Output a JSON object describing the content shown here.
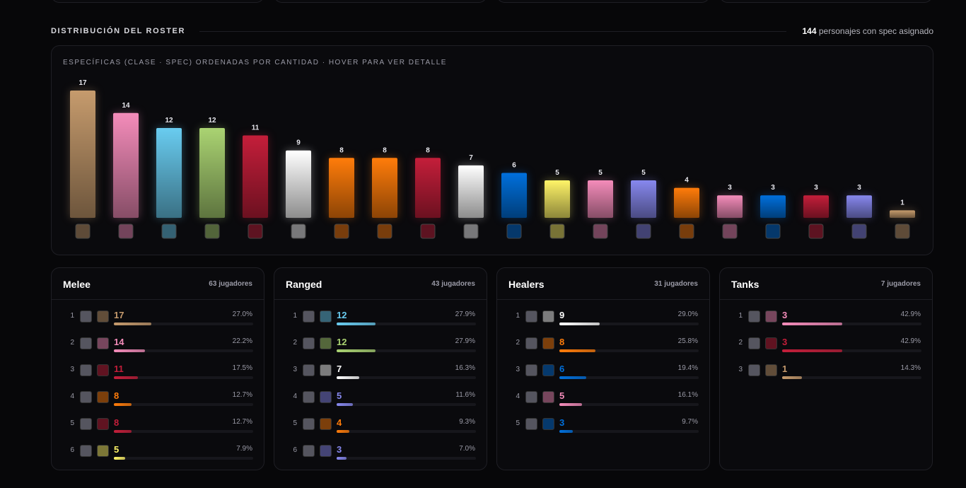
{
  "header": {
    "title": "DISTRIBUCIÓN DEL ROSTER",
    "summary_count": 144,
    "summary_text": "personajes con spec asignado"
  },
  "chart_data": {
    "type": "bar",
    "subtitle": "ESPECÍFICAS (CLASE · SPEC) ORDENADAS POR CANTIDAD · HOVER PARA VER DETALLE",
    "values": [
      17,
      14,
      12,
      12,
      11,
      9,
      8,
      8,
      8,
      7,
      6,
      5,
      5,
      5,
      4,
      3,
      3,
      3,
      3,
      1
    ],
    "colors": [
      "#C69B6D",
      "#F48CBA",
      "#69CCF0",
      "#AAD372",
      "#C41E3A",
      "#FFFFFF",
      "#FF7C0A",
      "#FF7C0A",
      "#C41E3A",
      "#FFFFFF",
      "#0070DD",
      "#FFF468",
      "#F48CBA",
      "#8788EE",
      "#FF7C0A",
      "#F48CBA",
      "#0070DD",
      "#C41E3A",
      "#8788EE",
      "#C69B6D"
    ]
  },
  "roles": [
    {
      "name": "Melee",
      "players": "63 jugadores",
      "rows": [
        {
          "rank": 1,
          "count": 17,
          "percent": 27.0,
          "percent_label": "27.0%",
          "color": "#C69B6D"
        },
        {
          "rank": 2,
          "count": 14,
          "percent": 22.2,
          "percent_label": "22.2%",
          "color": "#F48CBA"
        },
        {
          "rank": 3,
          "count": 11,
          "percent": 17.5,
          "percent_label": "17.5%",
          "color": "#C41E3A"
        },
        {
          "rank": 4,
          "count": 8,
          "percent": 12.7,
          "percent_label": "12.7%",
          "color": "#FF7C0A"
        },
        {
          "rank": 5,
          "count": 8,
          "percent": 12.7,
          "percent_label": "12.7%",
          "color": "#C41E3A"
        },
        {
          "rank": 6,
          "count": 5,
          "percent": 7.9,
          "percent_label": "7.9%",
          "color": "#FFF468"
        }
      ]
    },
    {
      "name": "Ranged",
      "players": "43 jugadores",
      "rows": [
        {
          "rank": 1,
          "count": 12,
          "percent": 27.9,
          "percent_label": "27.9%",
          "color": "#69CCF0"
        },
        {
          "rank": 2,
          "count": 12,
          "percent": 27.9,
          "percent_label": "27.9%",
          "color": "#AAD372"
        },
        {
          "rank": 3,
          "count": 7,
          "percent": 16.3,
          "percent_label": "16.3%",
          "color": "#FFFFFF"
        },
        {
          "rank": 4,
          "count": 5,
          "percent": 11.6,
          "percent_label": "11.6%",
          "color": "#8788EE"
        },
        {
          "rank": 5,
          "count": 4,
          "percent": 9.3,
          "percent_label": "9.3%",
          "color": "#FF7C0A"
        },
        {
          "rank": 6,
          "count": 3,
          "percent": 7.0,
          "percent_label": "7.0%",
          "color": "#8788EE"
        }
      ]
    },
    {
      "name": "Healers",
      "players": "31 jugadores",
      "rows": [
        {
          "rank": 1,
          "count": 9,
          "percent": 29.0,
          "percent_label": "29.0%",
          "color": "#FFFFFF"
        },
        {
          "rank": 2,
          "count": 8,
          "percent": 25.8,
          "percent_label": "25.8%",
          "color": "#FF7C0A"
        },
        {
          "rank": 3,
          "count": 6,
          "percent": 19.4,
          "percent_label": "19.4%",
          "color": "#0070DD"
        },
        {
          "rank": 4,
          "count": 5,
          "percent": 16.1,
          "percent_label": "16.1%",
          "color": "#F48CBA"
        },
        {
          "rank": 5,
          "count": 3,
          "percent": 9.7,
          "percent_label": "9.7%",
          "color": "#0070DD"
        }
      ]
    },
    {
      "name": "Tanks",
      "players": "7 jugadores",
      "rows": [
        {
          "rank": 1,
          "count": 3,
          "percent": 42.9,
          "percent_label": "42.9%",
          "color": "#F48CBA"
        },
        {
          "rank": 2,
          "count": 3,
          "percent": 42.9,
          "percent_label": "42.9%",
          "color": "#C41E3A"
        },
        {
          "rank": 3,
          "count": 1,
          "percent": 14.3,
          "percent_label": "14.3%",
          "color": "#C69B6D"
        }
      ]
    }
  ]
}
